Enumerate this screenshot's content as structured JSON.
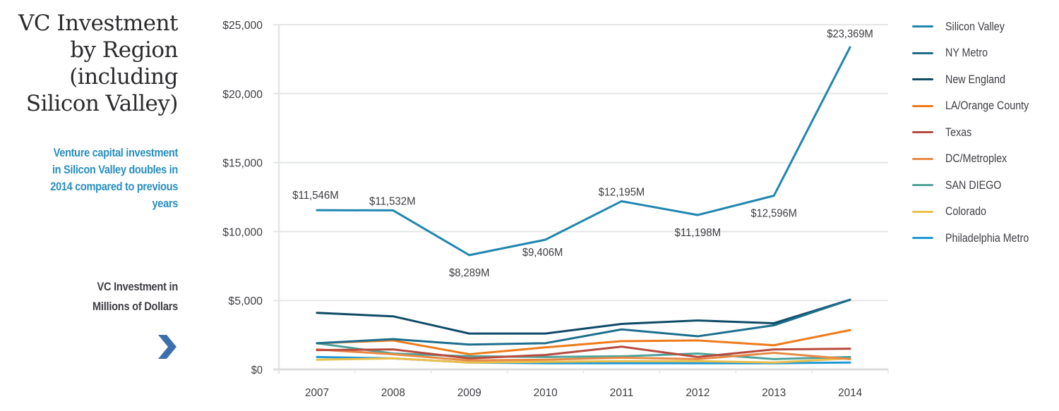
{
  "sidebar": {
    "title_lines": [
      "VC Investment",
      "by Region",
      "(including",
      "Silicon Valley)"
    ],
    "subtitle_lines": [
      "Venture capital investment",
      "in Silicon Valley doubles in",
      "2014 compared to previous",
      "years"
    ],
    "unit_lines": [
      "VC Investment in",
      "Millions of Dollars"
    ],
    "next_icon": "chevron-right-icon",
    "accent_color": "#2a8fbf",
    "chevron_color": "#3c6fad"
  },
  "chart_data": {
    "type": "line",
    "title": "VC Investment by Region (including Silicon Valley)",
    "xlabel": "",
    "ylabel": "VC Investment in Millions of Dollars",
    "categories": [
      "2007",
      "2008",
      "2009",
      "2010",
      "2011",
      "2012",
      "2013",
      "2014"
    ],
    "ylim": [
      0,
      25000
    ],
    "yticks": [
      0,
      5000,
      10000,
      15000,
      20000,
      25000
    ],
    "ytick_labels": [
      "$0",
      "$5,000",
      "$10,000",
      "$15,000",
      "$20,000",
      "$25,000"
    ],
    "grid": true,
    "legend_position": "right",
    "series": [
      {
        "name": "Silicon Valley",
        "color": "#1f86b0",
        "values": [
          11546,
          11532,
          8289,
          9406,
          12195,
          11198,
          12596,
          23369
        ],
        "data_labels": [
          "$11,546M",
          "$11,532M",
          "$8,289M",
          "$9,406M",
          "$12,195M",
          "$11,198M",
          "$12,596M",
          "$23,369M"
        ]
      },
      {
        "name": "NY Metro",
        "color": "#1c6e8c",
        "values": [
          1900,
          2200,
          1800,
          1900,
          2900,
          2400,
          3200,
          5050
        ]
      },
      {
        "name": "New England",
        "color": "#0f4a66",
        "values": [
          4100,
          3850,
          2600,
          2600,
          3300,
          3550,
          3350,
          5050
        ]
      },
      {
        "name": "LA/Orange County",
        "color": "#ee7a1a",
        "values": [
          1900,
          2100,
          1100,
          1600,
          2050,
          2100,
          1750,
          2850
        ]
      },
      {
        "name": "Texas",
        "color": "#b94a3e",
        "values": [
          1400,
          1450,
          800,
          1050,
          1650,
          900,
          1450,
          1500
        ]
      },
      {
        "name": "DC/Metroplex",
        "color": "#e88a45",
        "values": [
          1450,
          1100,
          650,
          700,
          850,
          750,
          1200,
          750
        ]
      },
      {
        "name": "SAN DIEGO",
        "color": "#4ea39b",
        "values": [
          1900,
          1150,
          950,
          900,
          950,
          1150,
          750,
          900
        ]
      },
      {
        "name": "Colorado",
        "color": "#ebbf4a",
        "values": [
          700,
          800,
          500,
          550,
          600,
          600,
          500,
          800
        ]
      },
      {
        "name": "Philadelphia Metro",
        "color": "#1f9ad6",
        "values": [
          900,
          800,
          500,
          450,
          450,
          450,
          450,
          500
        ]
      }
    ]
  }
}
